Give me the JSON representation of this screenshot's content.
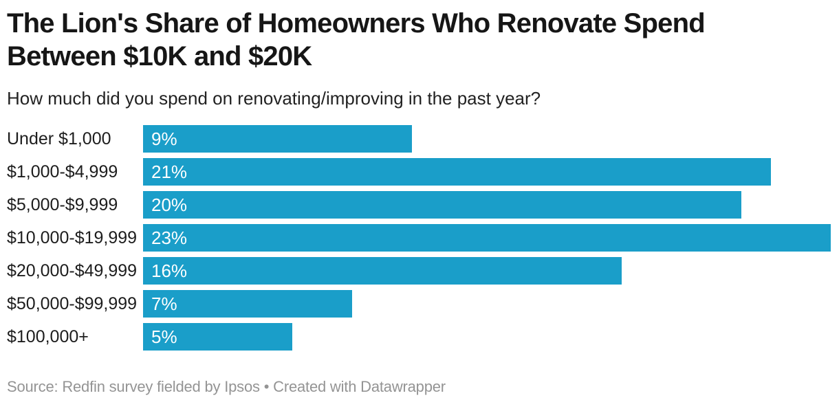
{
  "header": {
    "title_lines": [
      "The Lion's Share of Homeowners Who Renovate Spend",
      "Between $10K and $20K"
    ],
    "subtitle": "How much did you spend on renovating/improving in the past year?"
  },
  "chart_data": {
    "type": "bar",
    "orientation": "horizontal",
    "title": "The Lion's Share of Homeowners Who Renovate Spend Between $10K and $20K",
    "subtitle": "How much did you spend on renovating/improving in the past year?",
    "categories": [
      "Under $1,000",
      "$1,000-$4,999",
      "$5,000-$9,999",
      "$10,000-$19,999",
      "$20,000-$49,999",
      "$50,000-$99,999",
      "$100,000+"
    ],
    "values": [
      9,
      21,
      20,
      23,
      16,
      7,
      5
    ],
    "value_suffix": "%",
    "value_labels_position": "inside-bar-left",
    "xlim": [
      0,
      23
    ],
    "grid": false,
    "legend": "none",
    "bar_color": "#1A9EC9",
    "value_label_color": "#FFFFFF"
  },
  "footer": {
    "source_text": "Source: Redfin survey fielded by Ipsos • Created with Datawrapper"
  }
}
